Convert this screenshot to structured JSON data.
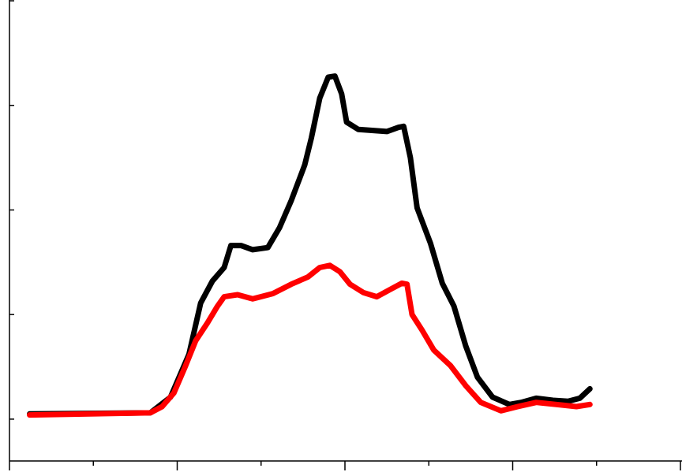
{
  "chart_data": {
    "type": "line",
    "xlim": [
      0,
      4
    ],
    "xticks": [
      0,
      1,
      2,
      3,
      4
    ],
    "xminor_ticks": [
      0.5,
      1.5,
      2.5,
      3.5
    ],
    "ylim": [
      -0.4,
      4
    ],
    "yticks": [
      0,
      1,
      2,
      3,
      4
    ],
    "series": [
      {
        "color": "#000000",
        "x": [
          0.12,
          0.84,
          0.96,
          1.07,
          1.14,
          1.21,
          1.28,
          1.32,
          1.38,
          1.45,
          1.54,
          1.61,
          1.68,
          1.76,
          1.8,
          1.85,
          1.9,
          1.94,
          1.98,
          2.01,
          2.08,
          2.25,
          2.32,
          2.35,
          2.39,
          2.43,
          2.51,
          2.58,
          2.65,
          2.72,
          2.79,
          2.88,
          2.98,
          3.05,
          3.14,
          3.24,
          3.33,
          3.4,
          3.46
        ],
        "values": [
          0.05,
          0.06,
          0.21,
          0.62,
          1.11,
          1.32,
          1.45,
          1.66,
          1.66,
          1.62,
          1.64,
          1.83,
          2.09,
          2.43,
          2.69,
          3.07,
          3.27,
          3.28,
          3.11,
          2.84,
          2.77,
          2.75,
          2.79,
          2.8,
          2.5,
          2.02,
          1.68,
          1.3,
          1.08,
          0.7,
          0.4,
          0.21,
          0.14,
          0.16,
          0.2,
          0.18,
          0.17,
          0.2,
          0.29
        ]
      },
      {
        "color": "#ff0000",
        "x": [
          0.12,
          0.84,
          0.91,
          0.98,
          1.05,
          1.11,
          1.18,
          1.24,
          1.28,
          1.36,
          1.45,
          1.57,
          1.68,
          1.78,
          1.85,
          1.91,
          1.97,
          2.03,
          2.11,
          2.19,
          2.27,
          2.34,
          2.37,
          2.4,
          2.46,
          2.53,
          2.63,
          2.72,
          2.81,
          2.93,
          3.03,
          3.14,
          3.26,
          3.38,
          3.46
        ],
        "values": [
          0.04,
          0.06,
          0.12,
          0.25,
          0.51,
          0.75,
          0.92,
          1.08,
          1.17,
          1.19,
          1.15,
          1.2,
          1.29,
          1.36,
          1.45,
          1.47,
          1.41,
          1.29,
          1.21,
          1.17,
          1.24,
          1.3,
          1.29,
          1.0,
          0.85,
          0.66,
          0.51,
          0.32,
          0.16,
          0.08,
          0.12,
          0.16,
          0.14,
          0.12,
          0.14
        ]
      }
    ]
  }
}
